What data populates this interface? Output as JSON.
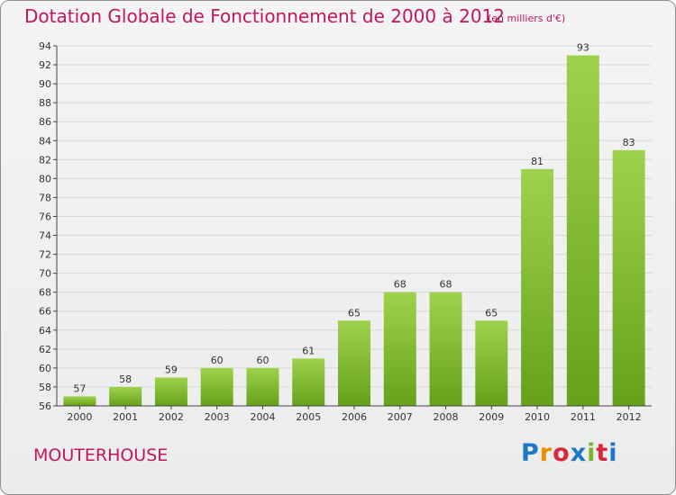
{
  "header": {
    "title": "Dotation Globale de Fonctionnement de 2000 à 2012",
    "subtitle": "(en milliers d'€)"
  },
  "footer": {
    "commune": "MOUTERHOUSE",
    "brand": "Proxiti"
  },
  "colors": {
    "title": "#c0175f",
    "bar_light": "#9fd24c",
    "bar_dark": "#66a11b",
    "grid": "#d9d9d9",
    "axis": "#444444"
  },
  "chart_data": {
    "type": "bar",
    "title": "Dotation Globale de Fonctionnement de 2000 à 2012",
    "subtitle": "(en milliers d'€)",
    "xlabel": "",
    "ylabel": "",
    "categories": [
      "2000",
      "2001",
      "2002",
      "2003",
      "2004",
      "2005",
      "2006",
      "2007",
      "2008",
      "2009",
      "2010",
      "2011",
      "2012"
    ],
    "values": [
      57,
      58,
      59,
      60,
      60,
      61,
      65,
      68,
      68,
      65,
      81,
      93,
      83
    ],
    "ylim": [
      56,
      94
    ],
    "yticks": [
      56,
      58,
      60,
      62,
      64,
      66,
      68,
      70,
      72,
      74,
      76,
      78,
      80,
      82,
      84,
      86,
      88,
      90,
      92,
      94
    ],
    "grid": true,
    "legend": "none"
  }
}
